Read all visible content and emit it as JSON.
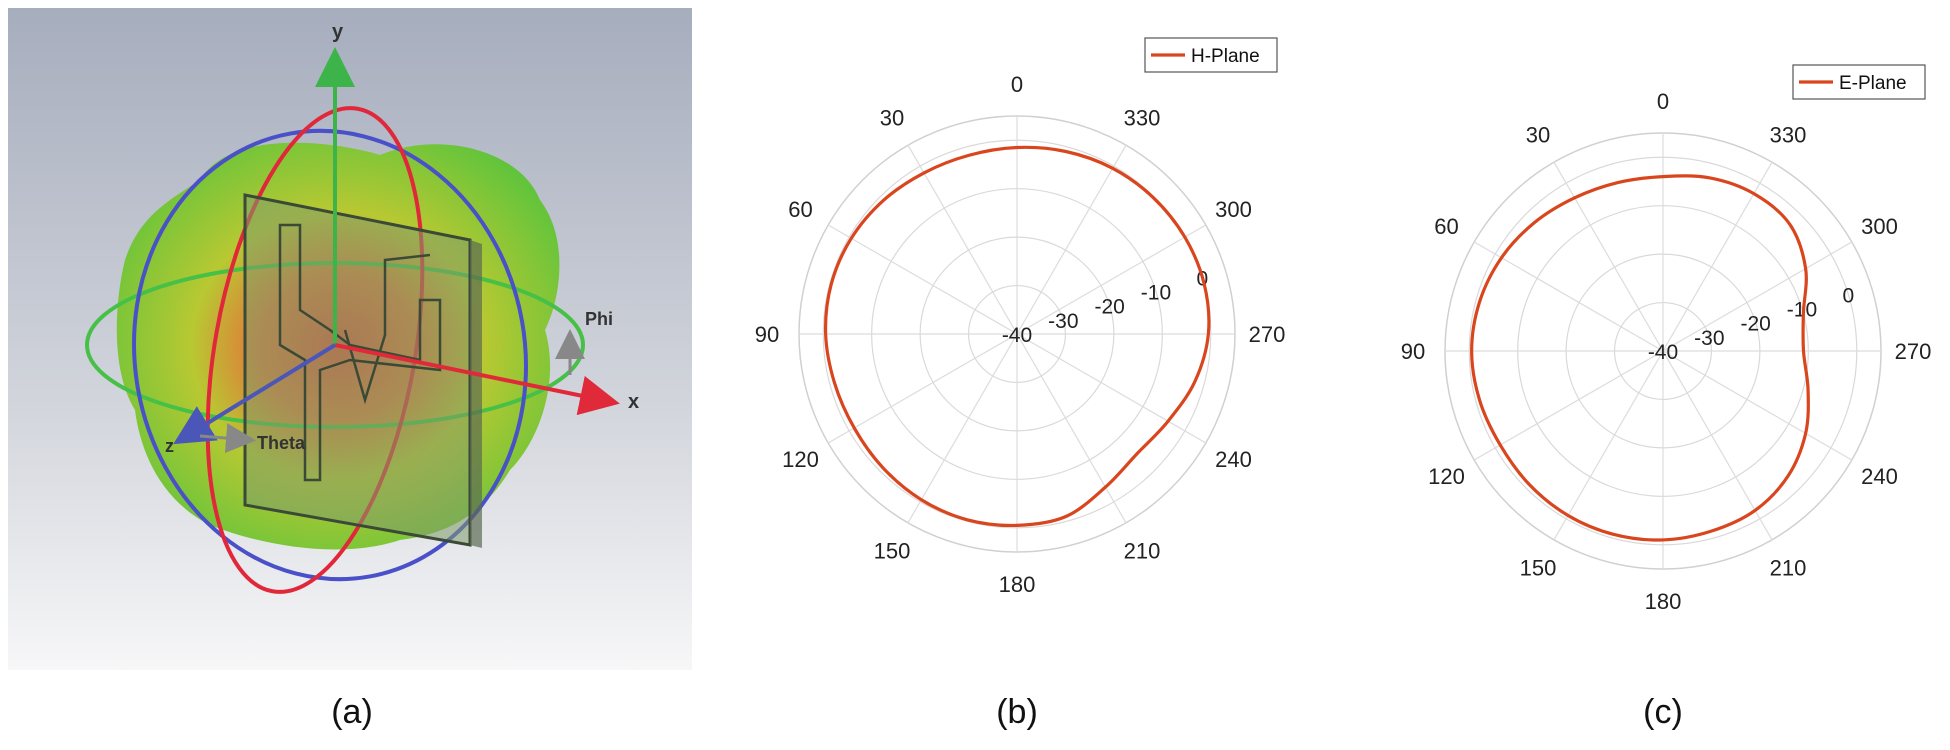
{
  "captions": [
    "(a)",
    "(b)",
    "(c)"
  ],
  "panel_a": {
    "axis_labels": {
      "y": "y",
      "x": "x",
      "z": "z"
    },
    "annotations": {
      "phi": "Phi",
      "theta": "Theta"
    }
  },
  "chart_data": [
    {
      "type": "polar-line",
      "legend": "H-Plane",
      "legend_position": "top-right",
      "line_color": "#d9461e",
      "angle_direction": "counterclockwise",
      "zero_at": "top",
      "angle_labels": [
        "0",
        "30",
        "60",
        "90",
        "120",
        "150",
        "180",
        "210",
        "240",
        "270",
        "300",
        "330"
      ],
      "radial_labels": [
        "-40",
        "-30",
        "-20",
        "-10",
        "0"
      ],
      "rlim": [
        -40,
        5
      ],
      "grid": true,
      "series": [
        {
          "name": "H-Plane",
          "angles_deg": [
            0,
            15,
            30,
            45,
            60,
            75,
            90,
            105,
            120,
            135,
            150,
            165,
            180,
            195,
            210,
            225,
            240,
            255,
            270,
            285,
            300,
            315,
            330,
            345
          ],
          "values": [
            -1.5,
            -1.8,
            -1.6,
            -1.0,
            -0.5,
            -0.3,
            -0.5,
            -1.0,
            -1.2,
            -0.9,
            -0.5,
            -0.3,
            -0.5,
            -1.0,
            -3.5,
            -5.0,
            -4.0,
            -2.0,
            -0.5,
            0.0,
            0.0,
            -0.2,
            -0.5,
            -1.0
          ]
        }
      ]
    },
    {
      "type": "polar-line",
      "legend": "E-Plane",
      "legend_position": "top-right",
      "line_color": "#d9461e",
      "angle_direction": "counterclockwise",
      "zero_at": "top",
      "angle_labels": [
        "0",
        "30",
        "60",
        "90",
        "120",
        "150",
        "180",
        "210",
        "240",
        "270",
        "300",
        "330"
      ],
      "radial_labels": [
        "-40",
        "-30",
        "-20",
        "-10",
        "0"
      ],
      "rlim": [
        -40,
        5
      ],
      "grid": true,
      "series": [
        {
          "name": "E-Plane",
          "angles_deg": [
            0,
            15,
            30,
            45,
            60,
            75,
            90,
            105,
            120,
            135,
            150,
            165,
            180,
            195,
            210,
            225,
            240,
            255,
            270,
            285,
            300,
            315,
            330,
            345
          ],
          "values": [
            -4.0,
            -4.0,
            -3.5,
            -2.5,
            -1.5,
            -0.8,
            -0.5,
            -0.8,
            -1.2,
            -1.0,
            -0.8,
            -0.8,
            -1.0,
            -1.5,
            -2.0,
            -3.5,
            -6.0,
            -9.0,
            -11.0,
            -10.0,
            -6.0,
            -3.0,
            -2.5,
            -3.0
          ]
        }
      ]
    }
  ]
}
